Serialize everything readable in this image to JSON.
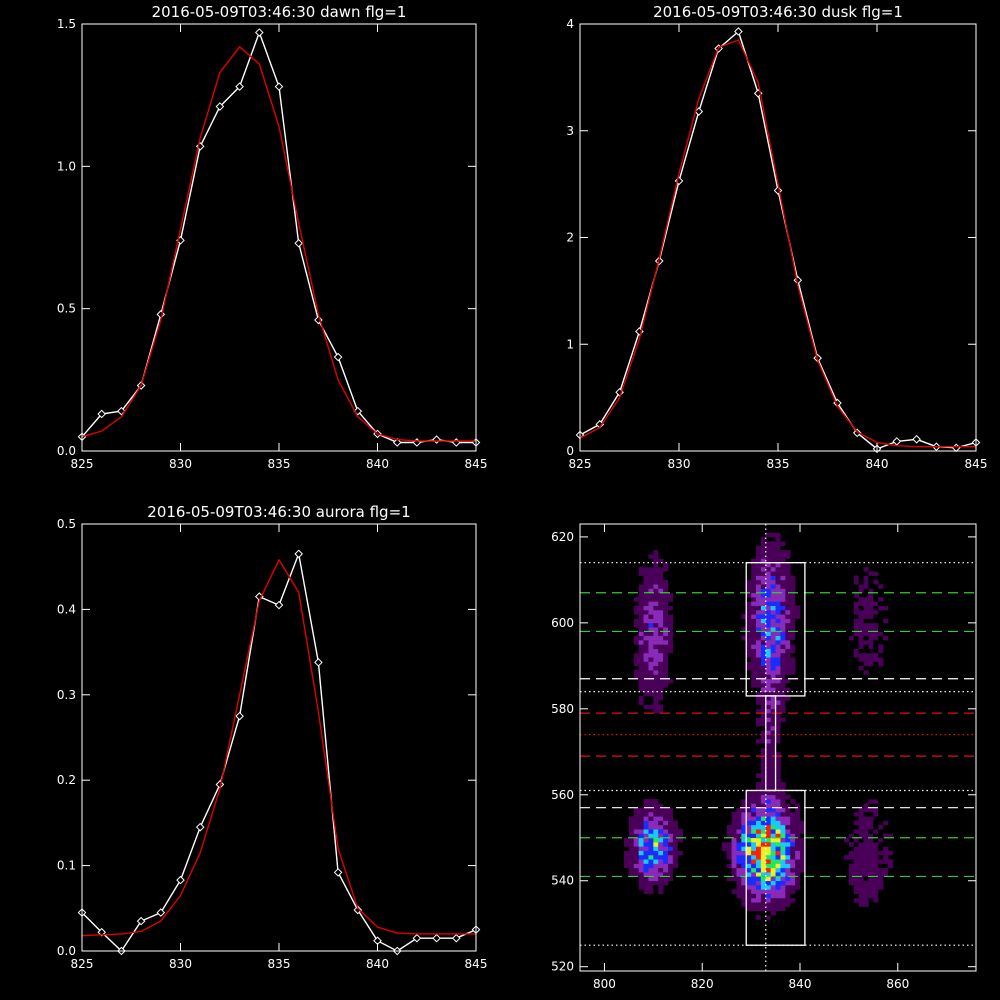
{
  "chart_data": [
    {
      "type": "line",
      "title": "2016-05-09T03:46:30 dawn flg=1",
      "xlim": [
        825,
        845
      ],
      "ylim": [
        0,
        1.5
      ],
      "xticks": [
        825,
        830,
        835,
        840,
        845
      ],
      "yticks": [
        0.0,
        0.5,
        1.0,
        1.5
      ],
      "ytick_labels": [
        "0.0",
        "0.5",
        "1.0",
        "1.5"
      ],
      "grid": false,
      "series": [
        {
          "color": "#ffffff",
          "markers": true,
          "x": [
            825,
            826,
            827,
            828,
            829,
            830,
            831,
            832,
            833,
            834,
            835,
            836,
            837,
            838,
            839,
            840,
            841,
            842,
            843,
            844,
            845
          ],
          "y": [
            0.05,
            0.13,
            0.14,
            0.23,
            0.48,
            0.74,
            1.07,
            1.21,
            1.28,
            1.47,
            1.28,
            0.73,
            0.46,
            0.33,
            0.14,
            0.06,
            0.03,
            0.03,
            0.04,
            0.03,
            0.03
          ]
        },
        {
          "color": "#e00000",
          "markers": false,
          "x": [
            825,
            826,
            827,
            828,
            829,
            830,
            831,
            832,
            833,
            834,
            835,
            836,
            837,
            838,
            839,
            840,
            841,
            842,
            843,
            844,
            845
          ],
          "y": [
            0.05,
            0.07,
            0.12,
            0.23,
            0.46,
            0.78,
            1.1,
            1.33,
            1.42,
            1.36,
            1.14,
            0.8,
            0.48,
            0.25,
            0.12,
            0.06,
            0.04,
            0.035,
            0.035,
            0.035,
            0.035
          ]
        }
      ]
    },
    {
      "type": "line",
      "title": "2016-05-09T03:46:30 dusk flg=1",
      "xlim": [
        825,
        845
      ],
      "ylim": [
        0,
        4
      ],
      "xticks": [
        825,
        830,
        835,
        840,
        845
      ],
      "yticks": [
        0,
        1,
        2,
        3,
        4
      ],
      "ytick_labels": [
        "0",
        "1",
        "2",
        "3",
        "4"
      ],
      "grid": false,
      "series": [
        {
          "color": "#ffffff",
          "markers": true,
          "x": [
            825,
            826,
            827,
            828,
            829,
            830,
            831,
            832,
            833,
            834,
            835,
            836,
            837,
            838,
            839,
            840,
            841,
            842,
            843,
            844,
            845
          ],
          "y": [
            0.15,
            0.25,
            0.55,
            1.12,
            1.78,
            2.53,
            3.18,
            3.77,
            3.93,
            3.35,
            2.44,
            1.6,
            0.87,
            0.45,
            0.17,
            0.02,
            0.09,
            0.11,
            0.04,
            0.03,
            0.08
          ]
        },
        {
          "color": "#e00000",
          "markers": false,
          "x": [
            825,
            826,
            827,
            828,
            829,
            830,
            831,
            832,
            833,
            834,
            835,
            836,
            837,
            838,
            839,
            840,
            841,
            842,
            843,
            844,
            845
          ],
          "y": [
            0.12,
            0.22,
            0.5,
            1.05,
            1.8,
            2.6,
            3.3,
            3.78,
            3.85,
            3.45,
            2.5,
            1.55,
            0.85,
            0.42,
            0.18,
            0.08,
            0.05,
            0.04,
            0.04,
            0.04,
            0.04
          ]
        }
      ]
    },
    {
      "type": "line",
      "title": "2016-05-09T03:46:30 aurora flg=1",
      "xlim": [
        825,
        845
      ],
      "ylim": [
        0,
        0.5
      ],
      "xticks": [
        825,
        830,
        835,
        840,
        845
      ],
      "yticks": [
        0.0,
        0.1,
        0.2,
        0.3,
        0.4,
        0.5
      ],
      "ytick_labels": [
        "0.0",
        "0.1",
        "0.2",
        "0.3",
        "0.4",
        "0.5"
      ],
      "grid": false,
      "series": [
        {
          "color": "#ffffff",
          "markers": true,
          "x": [
            825,
            826,
            827,
            828,
            829,
            830,
            831,
            832,
            833,
            834,
            835,
            836,
            837,
            838,
            839,
            840,
            841,
            842,
            843,
            844,
            845
          ],
          "y": [
            0.045,
            0.022,
            0.0,
            0.035,
            0.045,
            0.083,
            0.145,
            0.195,
            0.275,
            0.415,
            0.405,
            0.465,
            0.338,
            0.092,
            0.048,
            0.012,
            0.0,
            0.015,
            0.015,
            0.015,
            0.025
          ]
        },
        {
          "color": "#e00000",
          "markers": false,
          "x": [
            825,
            826,
            827,
            828,
            829,
            830,
            831,
            832,
            833,
            834,
            835,
            836,
            837,
            838,
            839,
            840,
            841,
            842,
            843,
            844,
            845
          ],
          "y": [
            0.018,
            0.019,
            0.02,
            0.023,
            0.035,
            0.065,
            0.115,
            0.19,
            0.3,
            0.41,
            0.458,
            0.42,
            0.28,
            0.12,
            0.05,
            0.028,
            0.021,
            0.02,
            0.02,
            0.02,
            0.02
          ]
        }
      ]
    },
    {
      "type": "heatmap",
      "title": "",
      "xlim": [
        795,
        876
      ],
      "ylim": [
        519,
        623
      ],
      "xticks": [
        800,
        820,
        840,
        860
      ],
      "yticks": [
        520,
        540,
        560,
        580,
        600,
        620
      ],
      "colormap": [
        "#000000",
        "#4a0058",
        "#8a2ab8",
        "#1a2cff",
        "#18c8ff",
        "#20e860",
        "#f0f020",
        "#ff2000"
      ],
      "blobs": [
        {
          "x": 833,
          "y": 547,
          "sx": 3.6,
          "sy": 6.5,
          "peak": 1.0
        },
        {
          "x": 834,
          "y": 600,
          "sx": 2.8,
          "sy": 11.0,
          "peak": 0.42
        },
        {
          "x": 834,
          "y": 572,
          "sx": 1.5,
          "sy": 12.0,
          "peak": 0.16
        },
        {
          "x": 810,
          "y": 548,
          "sx": 2.8,
          "sy": 5.0,
          "peak": 0.58
        },
        {
          "x": 810,
          "y": 598,
          "sx": 2.4,
          "sy": 11.0,
          "peak": 0.28
        },
        {
          "x": 854,
          "y": 546,
          "sx": 3.5,
          "sy": 10.0,
          "peak": 0.13
        },
        {
          "x": 854,
          "y": 600,
          "sx": 3.5,
          "sy": 12.0,
          "peak": 0.1
        }
      ],
      "boxes": [
        {
          "x": [
            829,
            841
          ],
          "y": [
            525,
            561
          ],
          "color": "#ffffff"
        },
        {
          "x": [
            829,
            841
          ],
          "y": [
            583,
            614
          ],
          "color": "#ffffff"
        },
        {
          "x": [
            833,
            835
          ],
          "y": [
            561,
            583
          ],
          "color": "#ffffff"
        }
      ],
      "vlines": [
        {
          "x": 833,
          "color": "#ffffff",
          "style": "dotted"
        }
      ],
      "hlines": [
        {
          "y": 614,
          "color": "#ffffff",
          "style": "dotted"
        },
        {
          "y": 607,
          "color": "#30d030",
          "style": "dashed"
        },
        {
          "y": 598,
          "color": "#30d030",
          "style": "dashed"
        },
        {
          "y": 587,
          "color": "#ffffff",
          "style": "dashed"
        },
        {
          "y": 584,
          "color": "#ffffff",
          "style": "dotted"
        },
        {
          "y": 579,
          "color": "#e01010",
          "style": "dashed"
        },
        {
          "y": 574,
          "color": "#e01010",
          "style": "dotted"
        },
        {
          "y": 569,
          "color": "#e01010",
          "style": "dashed"
        },
        {
          "y": 561,
          "color": "#ffffff",
          "style": "dotted"
        },
        {
          "y": 557,
          "color": "#ffffff",
          "style": "dashed"
        },
        {
          "y": 550,
          "color": "#30d030",
          "style": "dashed"
        },
        {
          "y": 541,
          "color": "#30d030",
          "style": "dashed"
        },
        {
          "y": 525,
          "color": "#ffffff",
          "style": "dotted"
        }
      ]
    }
  ]
}
